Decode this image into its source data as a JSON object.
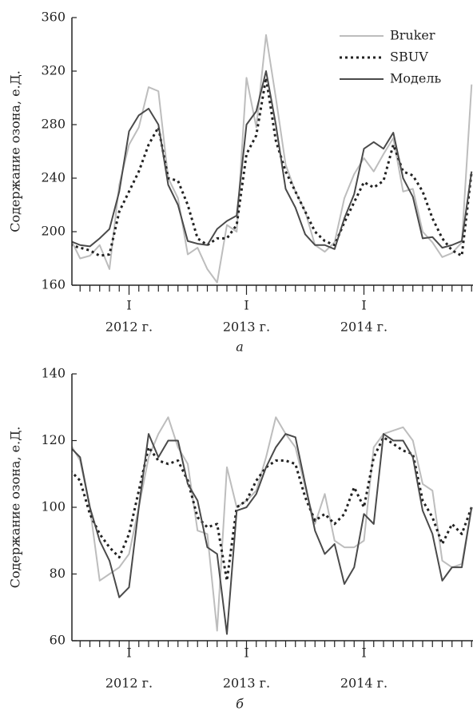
{
  "chart_data": [
    {
      "type": "line",
      "panel_label": "а",
      "ylabel": "Содержание озона, е.Д.",
      "ylim": [
        160,
        360
      ],
      "yticks": [
        160,
        200,
        240,
        280,
        320,
        360
      ],
      "categories": [
        null,
        null,
        null,
        null,
        null,
        null,
        "I",
        null,
        null,
        null,
        null,
        null,
        null,
        null,
        null,
        null,
        null,
        null,
        "I",
        null,
        null,
        null,
        null,
        null,
        null,
        null,
        null,
        null,
        null,
        null,
        "I",
        null,
        null,
        null,
        null,
        null,
        null,
        null,
        null,
        null,
        null,
        null
      ],
      "years": [
        "2012 г.",
        "2013 г.",
        "2014 г."
      ],
      "legend": "upper right",
      "series": [
        {
          "name": "Bruker",
          "color": "#bdbdbd",
          "style": "solid",
          "values": [
            195,
            180,
            182,
            190,
            172,
            235,
            265,
            278,
            308,
            305,
            240,
            225,
            183,
            188,
            172,
            162,
            205,
            200,
            315,
            278,
            347,
            300,
            250,
            230,
            215,
            190,
            185,
            192,
            225,
            243,
            255,
            245,
            258,
            270,
            230,
            232,
            200,
            192,
            181,
            184,
            192,
            310
          ]
        },
        {
          "name": "SBUV",
          "color": "#222222",
          "style": "dotted",
          "values": [
            190,
            188,
            186,
            182,
            183,
            215,
            230,
            245,
            265,
            278,
            240,
            238,
            220,
            195,
            190,
            195,
            195,
            205,
            258,
            272,
            315,
            268,
            245,
            230,
            215,
            200,
            193,
            190,
            207,
            222,
            237,
            233,
            238,
            265,
            245,
            242,
            230,
            210,
            195,
            186,
            182,
            245
          ]
        },
        {
          "name": "Модель",
          "color": "#4a4a4a",
          "style": "solid",
          "values": [
            193,
            190,
            189,
            195,
            202,
            230,
            275,
            287,
            292,
            280,
            235,
            220,
            193,
            191,
            190,
            202,
            208,
            212,
            280,
            290,
            320,
            280,
            232,
            218,
            198,
            190,
            190,
            187,
            210,
            228,
            262,
            267,
            262,
            274,
            240,
            226,
            195,
            196,
            188,
            190,
            193,
            245
          ]
        }
      ]
    },
    {
      "type": "line",
      "panel_label": "б",
      "ylabel": "Содержание озона, е.Д.",
      "ylim": [
        60,
        140
      ],
      "yticks": [
        60,
        80,
        100,
        120,
        140
      ],
      "categories": [
        null,
        null,
        null,
        null,
        null,
        null,
        "I",
        null,
        null,
        null,
        null,
        null,
        null,
        null,
        null,
        null,
        null,
        null,
        "I",
        null,
        null,
        null,
        null,
        null,
        null,
        null,
        null,
        null,
        null,
        null,
        "I",
        null,
        null,
        null,
        null,
        null,
        null,
        null,
        null,
        null,
        null,
        null
      ],
      "years": [
        "2012 г.",
        "2013 г.",
        "2014 г."
      ],
      "series": [
        {
          "color": "#bdbdbd",
          "style": "solid",
          "values": [
            119,
            114,
            100,
            78,
            80,
            82,
            86,
            100,
            115,
            122,
            127,
            118,
            113,
            93,
            92,
            63,
            112,
            100,
            102,
            105,
            115,
            127,
            122,
            118,
            106,
            95,
            104,
            90,
            88,
            88,
            90,
            118,
            122,
            123,
            124,
            120,
            107,
            105,
            84,
            82,
            83,
            100
          ]
        },
        {
          "color": "#222222",
          "style": "dotted",
          "values": [
            111,
            108,
            98,
            92,
            88,
            85,
            92,
            105,
            118,
            114,
            113,
            114,
            108,
            97,
            94,
            95,
            78,
            100,
            102,
            108,
            112,
            114,
            114,
            113,
            103,
            96,
            98,
            95,
            98,
            106,
            100,
            115,
            121,
            119,
            117,
            116,
            102,
            97,
            89,
            95,
            92,
            100
          ]
        },
        {
          "color": "#4a4a4a",
          "style": "solid",
          "values": [
            118,
            115,
            100,
            90,
            84,
            73,
            76,
            100,
            122,
            115,
            120,
            120,
            107,
            102,
            88,
            86,
            62,
            99,
            100,
            104,
            112,
            118,
            122,
            121,
            107,
            93,
            86,
            89,
            77,
            82,
            98,
            95,
            122,
            120,
            120,
            115,
            99,
            92,
            78,
            82,
            82,
            100
          ]
        }
      ]
    }
  ]
}
